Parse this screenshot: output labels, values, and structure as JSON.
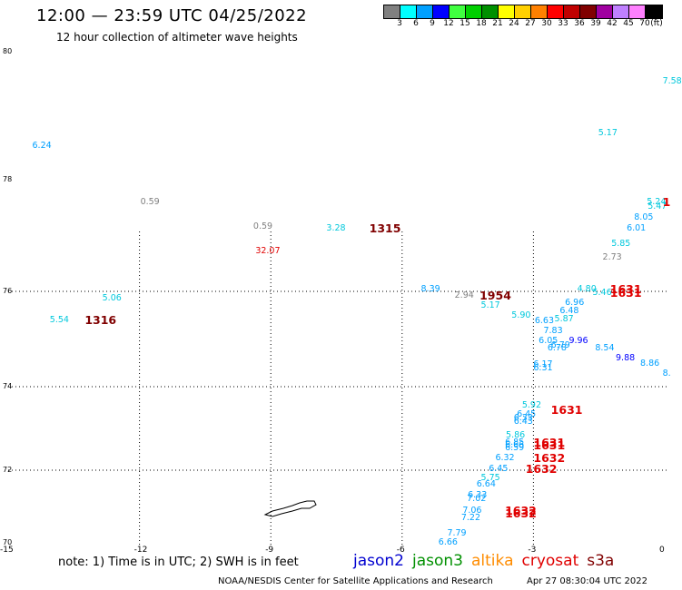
{
  "title": "12:00 — 23:59 UTC 04/25/2022",
  "subtitle": "12 hour collection of altimeter wave heights",
  "colorbar": {
    "unit": "(ft)",
    "swatches": [
      "#808080",
      "#00ffff",
      "#00a0ff",
      "#0000ff",
      "#40ff40",
      "#00d000",
      "#009000",
      "#ffff00",
      "#ffd000",
      "#ff8000",
      "#ff0000",
      "#c00000",
      "#800000",
      "#a000a0",
      "#c080ff",
      "#ff80ff",
      "#000000"
    ],
    "labels": [
      "3",
      "6",
      "9",
      "12",
      "15",
      "18",
      "21",
      "24",
      "27",
      "30",
      "33",
      "36",
      "39",
      "42",
      "45",
      "70"
    ]
  },
  "axes": {
    "lon_ticks": [
      "-15",
      "-12",
      "-9",
      "-6",
      "-3",
      "0"
    ],
    "lat_ticks": [
      "80",
      "78",
      "76",
      "74",
      "72",
      "70"
    ]
  },
  "wave_labels": [
    {
      "t": "7.58",
      "c": "#00c8dc",
      "lon": -0.05,
      "lat": 79.53
    },
    {
      "t": "6.24",
      "c": "#00a0ff",
      "lon": -14.45,
      "lat": 78.53
    },
    {
      "t": "5.17",
      "c": "#00c8dc",
      "lon": -1.52,
      "lat": 78.72
    },
    {
      "t": "0.59",
      "c": "#808080",
      "lon": -11.98,
      "lat": 77.6
    },
    {
      "t": "0.59",
      "c": "#808080",
      "lon": -9.4,
      "lat": 77.15
    },
    {
      "t": "3.28",
      "c": "#00c8dc",
      "lon": -7.73,
      "lat": 77.12
    },
    {
      "t": "32.07",
      "c": "#e00000",
      "lon": -9.35,
      "lat": 76.72
    },
    {
      "t": "5.24",
      "c": "#00c8dc",
      "lon": -0.41,
      "lat": 77.6
    },
    {
      "t": "5.47",
      "c": "#00c8dc",
      "lon": -0.39,
      "lat": 77.52
    },
    {
      "t": "8.05",
      "c": "#00a0ff",
      "lon": -0.7,
      "lat": 77.32
    },
    {
      "t": "6.01",
      "c": "#00a0ff",
      "lon": -0.87,
      "lat": 77.12
    },
    {
      "t": "5.85",
      "c": "#00c8dc",
      "lon": -1.22,
      "lat": 76.85
    },
    {
      "t": "2.73",
      "c": "#808080",
      "lon": -1.42,
      "lat": 76.6
    },
    {
      "t": "8.39",
      "c": "#00a0ff",
      "lon": -5.57,
      "lat": 76.04
    },
    {
      "t": "2.94",
      "c": "#808080",
      "lon": -4.8,
      "lat": 75.91
    },
    {
      "t": "4.80",
      "c": "#00c8dc",
      "lon": -2.0,
      "lat": 76.04
    },
    {
      "t": "5.46",
      "c": "#00c8dc",
      "lon": -1.65,
      "lat": 75.97
    },
    {
      "t": "5.06",
      "c": "#00c8dc",
      "lon": -12.85,
      "lat": 75.85
    },
    {
      "t": "5.17",
      "c": "#00c8dc",
      "lon": -4.2,
      "lat": 75.69
    },
    {
      "t": "6.96",
      "c": "#00a0ff",
      "lon": -2.28,
      "lat": 75.76
    },
    {
      "t": "5.90",
      "c": "#00c8dc",
      "lon": -3.5,
      "lat": 75.49
    },
    {
      "t": "6.48",
      "c": "#00a0ff",
      "lon": -2.4,
      "lat": 75.58
    },
    {
      "t": "5.54",
      "c": "#00c8dc",
      "lon": -14.05,
      "lat": 75.4
    },
    {
      "t": "6.63",
      "c": "#00a0ff",
      "lon": -2.97,
      "lat": 75.38
    },
    {
      "t": "5.87",
      "c": "#00c8dc",
      "lon": -2.52,
      "lat": 75.41
    },
    {
      "t": "7.83",
      "c": "#00a0ff",
      "lon": -2.77,
      "lat": 75.16
    },
    {
      "t": "6.05",
      "c": "#00a0ff",
      "lon": -2.88,
      "lat": 74.96
    },
    {
      "t": "9.96",
      "c": "#0000ff",
      "lon": -2.19,
      "lat": 74.96
    },
    {
      "t": "6.79",
      "c": "#00a0ff",
      "lon": -2.6,
      "lat": 74.86
    },
    {
      "t": "6.78",
      "c": "#00a0ff",
      "lon": -2.68,
      "lat": 74.8
    },
    {
      "t": "8.54",
      "c": "#00a0ff",
      "lon": -1.59,
      "lat": 74.8
    },
    {
      "t": "9.88",
      "c": "#0000ff",
      "lon": -1.12,
      "lat": 74.6
    },
    {
      "t": "8.86",
      "c": "#00a0ff",
      "lon": -0.56,
      "lat": 74.47
    },
    {
      "t": "8.",
      "c": "#00a0ff",
      "lon": -0.05,
      "lat": 74.27
    },
    {
      "t": "6.17",
      "c": "#00a0ff",
      "lon": -3.0,
      "lat": 74.45
    },
    {
      "t": "6.31",
      "c": "#00a0ff",
      "lon": -3.0,
      "lat": 74.39
    },
    {
      "t": "5.92",
      "c": "#00c8dc",
      "lon": -3.26,
      "lat": 73.55
    },
    {
      "t": "6.45",
      "c": "#00a0ff",
      "lon": -3.38,
      "lat": 73.33
    },
    {
      "t": "6.33",
      "c": "#00a0ff",
      "lon": -3.45,
      "lat": 73.23
    },
    {
      "t": "6.43",
      "c": "#00a0ff",
      "lon": -3.45,
      "lat": 73.16
    },
    {
      "t": "5.86",
      "c": "#00c8dc",
      "lon": -3.63,
      "lat": 72.83
    },
    {
      "t": "6.85",
      "c": "#00a0ff",
      "lon": -3.65,
      "lat": 72.66
    },
    {
      "t": "6.66",
      "c": "#00a0ff",
      "lon": -3.65,
      "lat": 72.59
    },
    {
      "t": "6.59",
      "c": "#00a0ff",
      "lon": -3.65,
      "lat": 72.52
    },
    {
      "t": "6.32",
      "c": "#00a0ff",
      "lon": -3.87,
      "lat": 72.29
    },
    {
      "t": "6.45",
      "c": "#00a0ff",
      "lon": -4.02,
      "lat": 72.02
    },
    {
      "t": "5.75",
      "c": "#00c8dc",
      "lon": -4.2,
      "lat": 71.78
    },
    {
      "t": "6.64",
      "c": "#00a0ff",
      "lon": -4.3,
      "lat": 71.59
    },
    {
      "t": "6.33",
      "c": "#00a0ff",
      "lon": -4.5,
      "lat": 71.3
    },
    {
      "t": "7.02",
      "c": "#00a0ff",
      "lon": -4.52,
      "lat": 71.2
    },
    {
      "t": "7.06",
      "c": "#00a0ff",
      "lon": -4.62,
      "lat": 70.88
    },
    {
      "t": "7.22",
      "c": "#00a0ff",
      "lon": -4.65,
      "lat": 70.68
    },
    {
      "t": "7.79",
      "c": "#00a0ff",
      "lon": -4.97,
      "lat": 70.25
    },
    {
      "t": "6.66",
      "c": "#00a0ff",
      "lon": -5.17,
      "lat": 69.98
    }
  ],
  "pass_times": [
    {
      "t": "1315",
      "c": "#800000",
      "lon": -6.75,
      "lat": 77.12
    },
    {
      "t": "1316",
      "c": "#800000",
      "lon": -13.25,
      "lat": 75.4
    },
    {
      "t": "1954",
      "c": "#800000",
      "lon": -4.23,
      "lat": 75.91
    },
    {
      "t": "1",
      "c": "#e00000",
      "lon": -0.05,
      "lat": 77.6
    },
    {
      "t": "1631",
      "c": "#e00000",
      "lon": -1.25,
      "lat": 76.04
    },
    {
      "t": "1631",
      "c": "#e00000",
      "lon": -1.25,
      "lat": 75.97
    },
    {
      "t": "1631",
      "c": "#e00000",
      "lon": -2.6,
      "lat": 73.44
    },
    {
      "t": "1631",
      "c": "#e00000",
      "lon": -3.0,
      "lat": 72.66
    },
    {
      "t": "1631",
      "c": "#e00000",
      "lon": -3.0,
      "lat": 72.59
    },
    {
      "t": "1632",
      "c": "#e00000",
      "lon": -3.0,
      "lat": 72.29
    },
    {
      "t": "1632",
      "c": "#e00000",
      "lon": -3.18,
      "lat": 72.02
    },
    {
      "t": "1632",
      "c": "#e00000",
      "lon": -3.65,
      "lat": 70.88
    },
    {
      "t": "1632",
      "c": "#e00000",
      "lon": -3.65,
      "lat": 70.79
    }
  ],
  "note": "note:  1) Time is in UTC;  2) SWH is in feet",
  "legend": [
    {
      "name": "jason2",
      "color": "#0000d0"
    },
    {
      "name": "jason3",
      "color": "#009000"
    },
    {
      "name": "altika",
      "color": "#ff8c00"
    },
    {
      "name": "cryosat",
      "color": "#e00000"
    },
    {
      "name": "s3a",
      "color": "#800000"
    }
  ],
  "footer": "NOAA/NESDIS Center for Satellite Applications and Research",
  "footer_date": "Apr 27 08:30:04 UTC 2022"
}
